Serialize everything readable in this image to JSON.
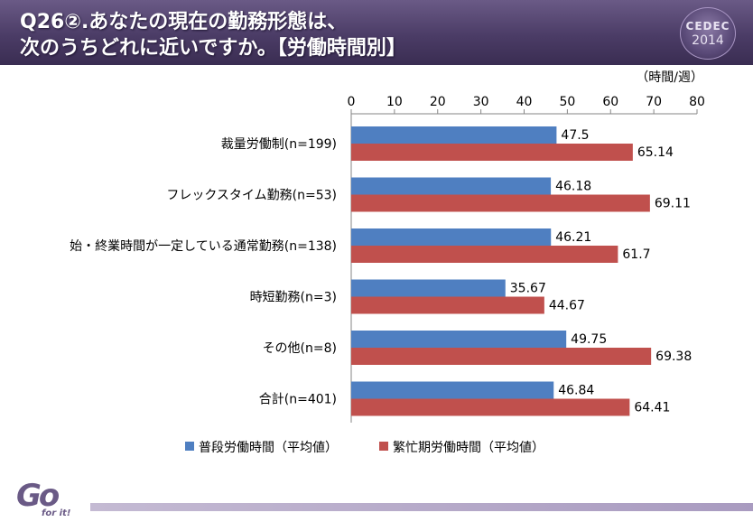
{
  "header": {
    "title_line1": "Q26②.あなたの現在の勤務形態は、",
    "title_line2": "次のうちどれに近いですか。【労働時間別】",
    "logo_text": "CEDEC",
    "logo_year": "2014"
  },
  "footer": {
    "logo_text": "Go for it!"
  },
  "colors": {
    "blue": "#4f7fc1",
    "red": "#c0504d",
    "header": "#4b3c66",
    "footer_bar": "#b3a7c8"
  },
  "chart_data": {
    "type": "bar",
    "orientation": "horizontal",
    "unit_label": "（時間/週）",
    "categories": [
      "裁量労働制(n=199)",
      "フレックスタイム勤務(n=53)",
      "始・終業時間が一定している通常勤務(n=138)",
      "時短勤務(n=3)",
      "その他(n=8)",
      "合計(n=401)"
    ],
    "series": [
      {
        "name": "普段労働時間（平均値）",
        "color": "#4f7fc1",
        "values": [
          47.5,
          46.18,
          46.21,
          35.67,
          49.75,
          46.84
        ],
        "labels": [
          "47.5",
          "46.18",
          "46.21",
          "35.67",
          "49.75",
          "46.84"
        ]
      },
      {
        "name": "繁忙期労働時間（平均値）",
        "color": "#c0504d",
        "values": [
          65.14,
          69.11,
          61.7,
          44.67,
          69.38,
          64.41
        ],
        "labels": [
          "65.14",
          "69.11",
          "61.7",
          "44.67",
          "69.38",
          "64.41"
        ]
      }
    ],
    "xlim": [
      0,
      80
    ],
    "ticks": [
      0,
      10,
      20,
      30,
      40,
      50,
      60,
      70,
      80
    ],
    "axis_position": "top",
    "grid": false,
    "legend_position": "bottom"
  }
}
